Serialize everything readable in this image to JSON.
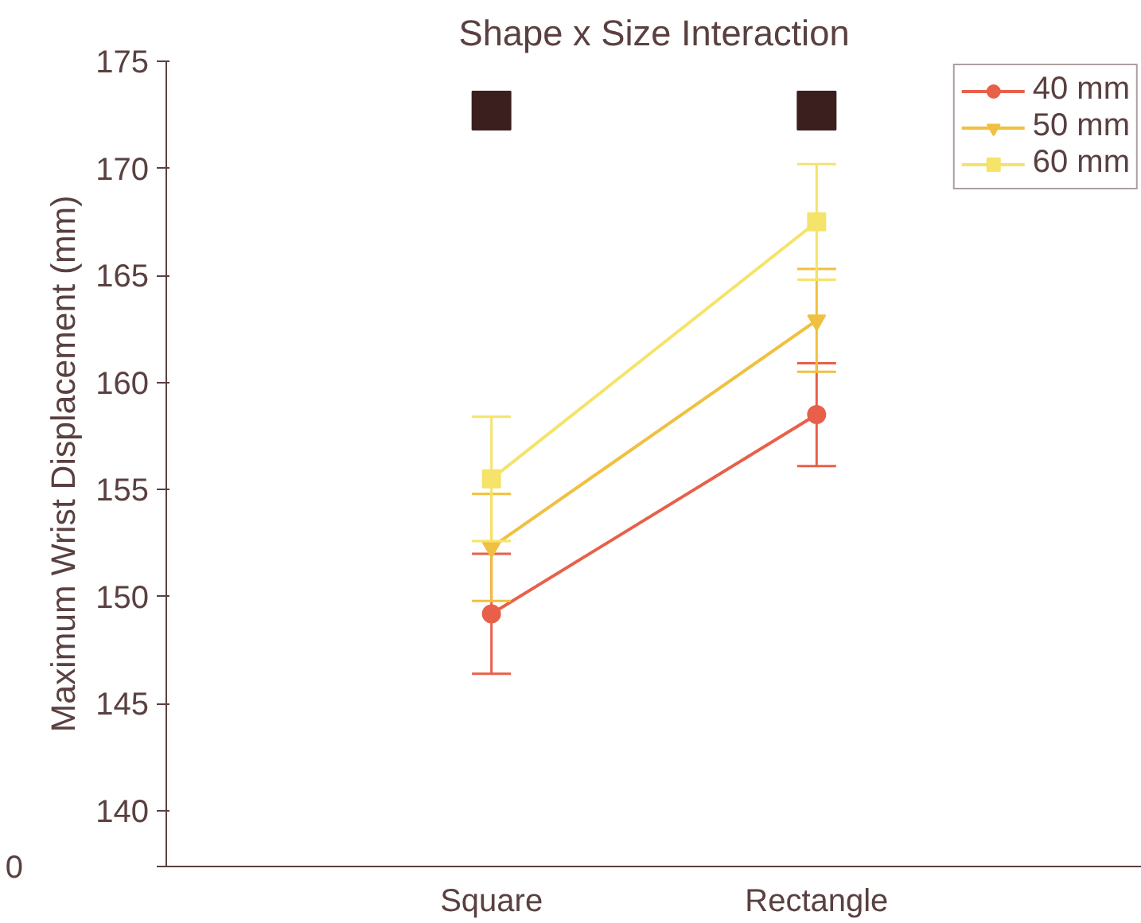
{
  "chart_data": {
    "type": "line",
    "title": "Shape x Size Interaction",
    "ylabel": "Maximum Wrist Displacement (mm)",
    "categories": [
      "Square",
      "Rectangle"
    ],
    "ylim": [
      137.4,
      175
    ],
    "annotations": [
      "0"
    ],
    "yticks": [
      {
        "value": 137.4,
        "label": null
      },
      140,
      145,
      150,
      155,
      160,
      165,
      170,
      175
    ],
    "series": [
      {
        "name": "40 mm",
        "color": "#e8604a",
        "marker": "circle",
        "values": [
          149.2,
          158.5
        ],
        "errors": [
          2.8,
          2.4
        ]
      },
      {
        "name": "50 mm",
        "color": "#f0c040",
        "marker": "triangle",
        "values": [
          152.3,
          162.9
        ],
        "errors": [
          2.5,
          2.4
        ]
      },
      {
        "name": "60 mm",
        "color": "#f5e36a",
        "marker": "square",
        "values": [
          155.5,
          167.5
        ],
        "errors": [
          2.9,
          2.7
        ]
      },
      {
        "type": "scatter",
        "color": "#3b1f1f",
        "marker": "square",
        "values": [
          172.7,
          172.7
        ]
      }
    ],
    "grid": false,
    "legend": "top right",
    "line_style": "solid"
  }
}
